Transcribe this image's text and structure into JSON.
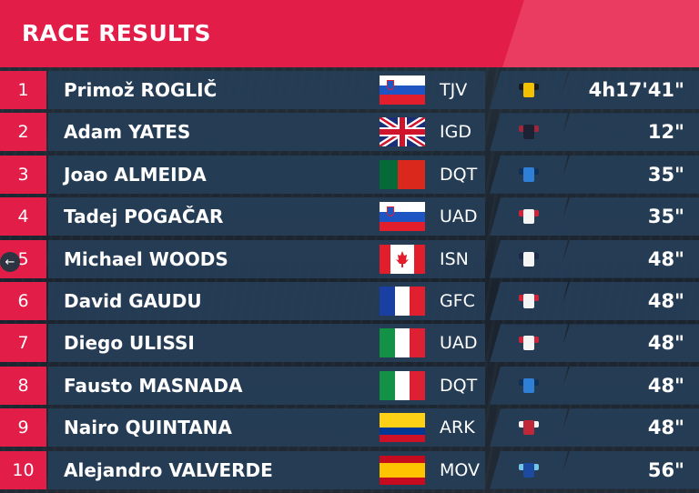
{
  "header": {
    "title": "RACE RESULTS"
  },
  "results": [
    {
      "pos": "1",
      "name": "Primož ROGLIČ",
      "team": "TJV",
      "time": "4h17'41\"",
      "flag": "slovenia",
      "jersey": "yellow-jersey",
      "jersey_colors": [
        "#f2c200",
        "#1a1a1a"
      ]
    },
    {
      "pos": "2",
      "name": "Adam YATES",
      "team": "IGD",
      "time": "12\"",
      "flag": "uk",
      "jersey": "dark-jersey",
      "jersey_colors": [
        "#1c2233",
        "#a0263a"
      ]
    },
    {
      "pos": "3",
      "name": "Joao ALMEIDA",
      "team": "DQT",
      "time": "35\"",
      "flag": "portugal",
      "jersey": "blue-jersey",
      "jersey_colors": [
        "#2f7fd6",
        "#10315c"
      ]
    },
    {
      "pos": "4",
      "name": "Tadej POGAČAR",
      "team": "UAD",
      "time": "35\"",
      "flag": "slovenia",
      "jersey": "white-red-jersey",
      "jersey_colors": [
        "#f4f4f4",
        "#d0233a"
      ]
    },
    {
      "pos": "5",
      "name": "Michael WOODS",
      "team": "ISN",
      "time": "48\"",
      "flag": "canada",
      "jersey": "white-navy-jersey",
      "jersey_colors": [
        "#f4f4f4",
        "#1b2a4a"
      ]
    },
    {
      "pos": "6",
      "name": "David GAUDU",
      "team": "GFC",
      "time": "48\"",
      "flag": "france",
      "jersey": "white-jersey",
      "jersey_colors": [
        "#f4f4f4",
        "#d0233a"
      ]
    },
    {
      "pos": "7",
      "name": "Diego ULISSI",
      "team": "UAD",
      "time": "48\"",
      "flag": "italy",
      "jersey": "white-red-jersey",
      "jersey_colors": [
        "#f4f4f4",
        "#d0233a"
      ]
    },
    {
      "pos": "8",
      "name": "Fausto MASNADA",
      "team": "DQT",
      "time": "48\"",
      "flag": "italy",
      "jersey": "blue-jersey",
      "jersey_colors": [
        "#2f7fd6",
        "#10315c"
      ]
    },
    {
      "pos": "9",
      "name": "Nairo QUINTANA",
      "team": "ARK",
      "time": "48\"",
      "flag": "colombia",
      "jersey": "red-jersey",
      "jersey_colors": [
        "#c0283a",
        "#f4f4f4"
      ]
    },
    {
      "pos": "10",
      "name": "Alejandro VALVERDE",
      "team": "MOV",
      "time": "56\"",
      "flag": "spain",
      "jersey": "movistar-jersey",
      "jersey_colors": [
        "#1c4aa0",
        "#74c6e8"
      ]
    }
  ],
  "flags": {
    "slovenia": {
      "dir": "h",
      "stripes": [
        "#ffffff",
        "#1e55c2",
        "#e21d2c"
      ]
    },
    "portugal": {
      "dir": "v",
      "stripes": [
        "#046a38",
        "#046a38",
        "#da291c",
        "#da291c",
        "#da291c"
      ]
    },
    "france": {
      "dir": "v",
      "stripes": [
        "#1a3fa3",
        "#ffffff",
        "#e1202f"
      ]
    },
    "italy": {
      "dir": "v",
      "stripes": [
        "#139245",
        "#ffffff",
        "#dd2033"
      ]
    },
    "colombia": {
      "dir": "h",
      "stripes": [
        "#fcd116",
        "#fcd116",
        "#003893",
        "#ce1126"
      ]
    },
    "spain": {
      "dir": "h",
      "stripes": [
        "#c60b1e",
        "#ffc400",
        "#ffc400",
        "#c60b1e"
      ]
    },
    "canada": {
      "dir": "v",
      "stripes": [
        "#e21d2c",
        "#ffffff",
        "#ffffff",
        "#e21d2c"
      ]
    },
    "uk": {
      "dir": "h",
      "stripes": [
        "#1a2f7a"
      ]
    }
  },
  "controls": {
    "back_icon": "←"
  }
}
